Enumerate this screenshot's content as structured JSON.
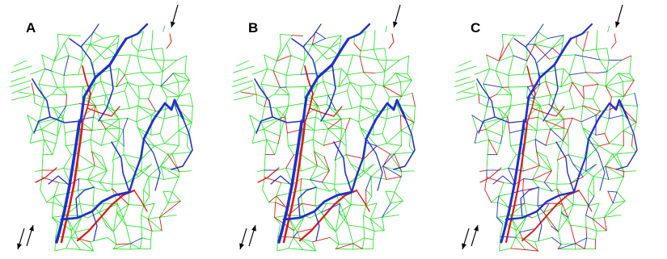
{
  "panels": [
    {
      "label": "A",
      "colors": {
        "capillary": "#2ee62e",
        "vessel_a": "#1f2fd0",
        "vessel_b": "#e01818"
      }
    },
    {
      "label": "B",
      "colors": {
        "capillary": "#2ee62e",
        "vessel_a": "#1f2fd0",
        "vessel_b": "#e01818"
      }
    },
    {
      "label": "C",
      "colors": {
        "capillary": "#2ee62e",
        "vessel_a": "#1f2fd0",
        "vessel_b": "#e01818"
      }
    }
  ],
  "arrows": {
    "inlet": "arrow-down-left-icon",
    "outlet": "arrow-pair-up-down-icon"
  }
}
